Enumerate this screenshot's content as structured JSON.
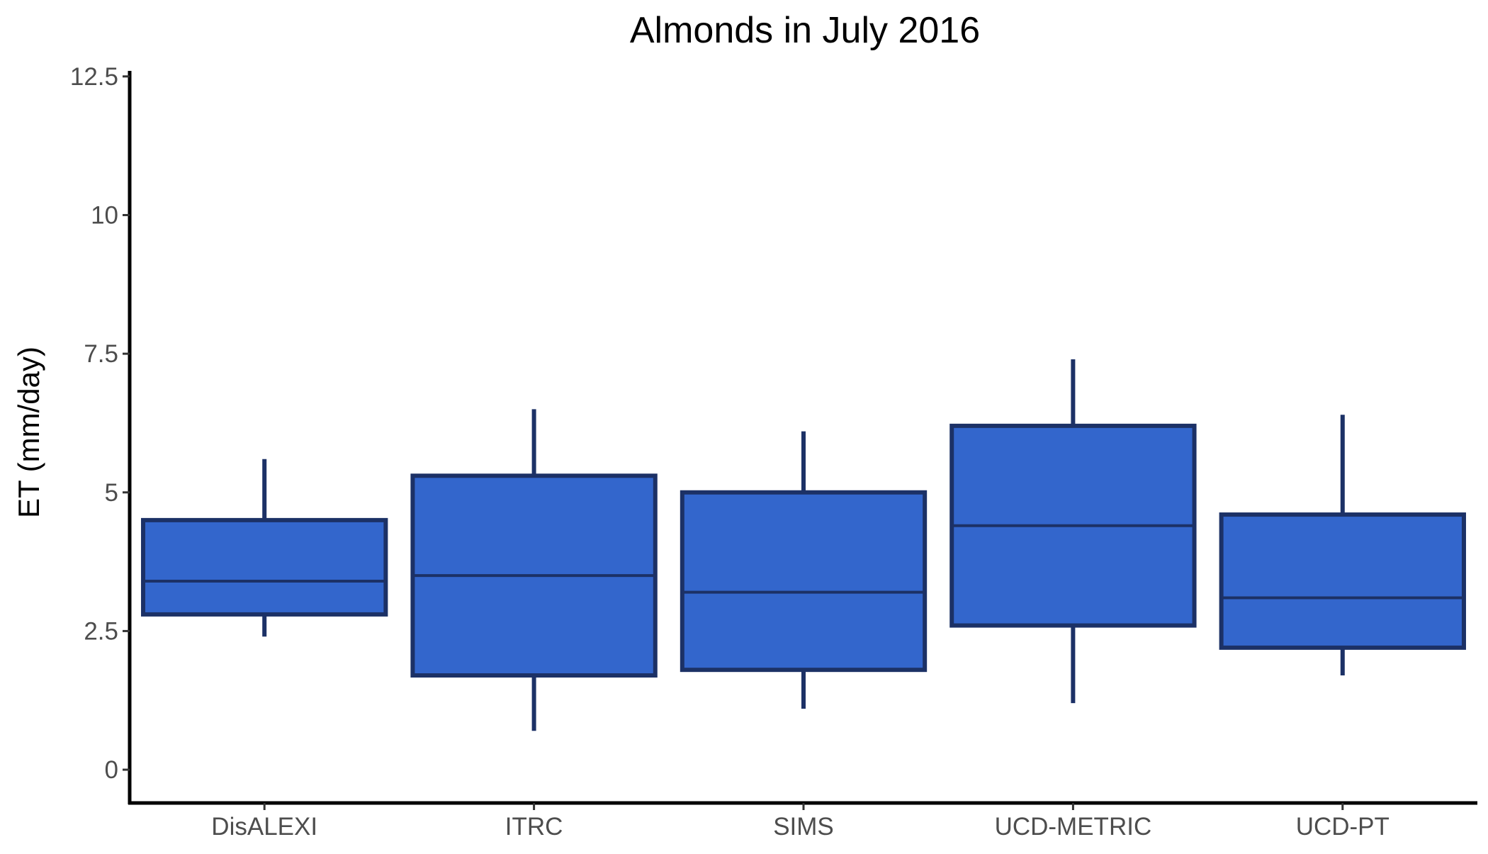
{
  "chart_data": {
    "type": "boxplot",
    "title": "Almonds in July 2016",
    "xlabel": "",
    "ylabel": "ET (mm/day)",
    "ylim": [
      -0.6,
      12.6
    ],
    "yticks": [
      0,
      2.5,
      5,
      7.5,
      10,
      12.5
    ],
    "ytick_labels": [
      "0",
      "2.5",
      "5",
      "7.5",
      "10",
      "12.5"
    ],
    "grid": false,
    "legend": "none",
    "colors": {
      "fill": "#3366CC",
      "stroke": "#1C3166",
      "axis": "#000000"
    },
    "categories": [
      "DisALEXI",
      "ITRC",
      "SIMS",
      "UCD-METRIC",
      "UCD-PT"
    ],
    "boxes": [
      {
        "category": "DisALEXI",
        "whisker_low": 2.4,
        "q1": 2.8,
        "median": 3.4,
        "q3": 4.5,
        "whisker_high": 5.6
      },
      {
        "category": "ITRC",
        "whisker_low": 0.7,
        "q1": 1.7,
        "median": 3.5,
        "q3": 5.3,
        "whisker_high": 6.5
      },
      {
        "category": "SIMS",
        "whisker_low": 1.1,
        "q1": 1.8,
        "median": 3.2,
        "q3": 5.0,
        "whisker_high": 6.1
      },
      {
        "category": "UCD-METRIC",
        "whisker_low": 1.2,
        "q1": 2.6,
        "median": 4.4,
        "q3": 6.2,
        "whisker_high": 7.4
      },
      {
        "category": "UCD-PT",
        "whisker_low": 1.7,
        "q1": 2.2,
        "median": 3.1,
        "q3": 4.6,
        "whisker_high": 6.4
      }
    ]
  }
}
